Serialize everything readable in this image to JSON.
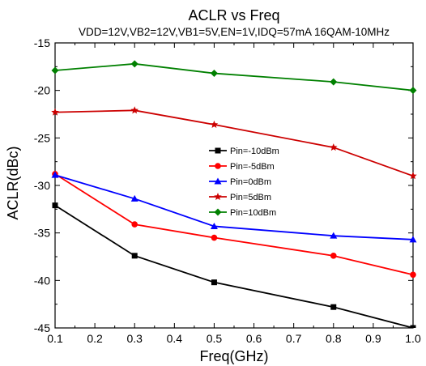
{
  "chart_data": {
    "type": "line",
    "title": "ACLR vs  Freq",
    "subtitle": "VDD=12V,VB2=12V,VB1=5V,EN=1V,IDQ=57mA  16QAM-10MHz",
    "xlabel": "Freq(GHz)",
    "ylabel": "ACLR(dBc)",
    "xlim": [
      0.1,
      1.0
    ],
    "ylim": [
      -45,
      -15
    ],
    "xticks": [
      "0.1",
      "0.2",
      "0.3",
      "0.4",
      "0.5",
      "0.6",
      "0.7",
      "0.8",
      "0.9",
      "1.0"
    ],
    "yticks": [
      "-45",
      "-40",
      "-35",
      "-30",
      "-25",
      "-20",
      "-15"
    ],
    "grid": false,
    "legend_position": "center-right",
    "x": [
      0.1,
      0.3,
      0.5,
      0.8,
      1.0
    ],
    "series": [
      {
        "name": "Pin=-10dBm",
        "color": "#000000",
        "marker": "square",
        "values": [
          -32.1,
          -37.4,
          -40.2,
          -42.8,
          -45.0
        ]
      },
      {
        "name": "Pin=-5dBm",
        "color": "#ff0000",
        "marker": "circle",
        "values": [
          -28.8,
          -34.1,
          -35.5,
          -37.4,
          -39.4
        ]
      },
      {
        "name": "Pin=0dBm",
        "color": "#0000ff",
        "marker": "triangle",
        "values": [
          -28.9,
          -31.4,
          -34.3,
          -35.3,
          -35.7
        ]
      },
      {
        "name": "Pin=5dBm",
        "color": "#cc0000",
        "marker": "star",
        "values": [
          -22.3,
          -22.1,
          -23.6,
          -26.0,
          -29.0
        ]
      },
      {
        "name": "Pin=10dBm",
        "color": "#008000",
        "marker": "diamond",
        "values": [
          -17.9,
          -17.2,
          -18.2,
          -19.1,
          -20.0
        ]
      }
    ]
  }
}
